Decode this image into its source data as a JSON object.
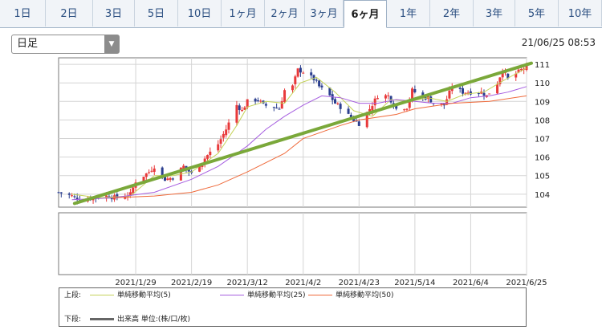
{
  "tabs": [
    {
      "label": "1日",
      "active": false
    },
    {
      "label": "2日",
      "active": false
    },
    {
      "label": "3日",
      "active": false
    },
    {
      "label": "5日",
      "active": false
    },
    {
      "label": "10日",
      "active": false
    },
    {
      "label": "1ヶ月",
      "active": false
    },
    {
      "label": "2ヶ月",
      "active": false
    },
    {
      "label": "3ヶ月",
      "active": false
    },
    {
      "label": "6ヶ月",
      "active": true
    },
    {
      "label": "1年",
      "active": false
    },
    {
      "label": "2年",
      "active": false
    },
    {
      "label": "3年",
      "active": false
    },
    {
      "label": "5年",
      "active": false
    },
    {
      "label": "10年",
      "active": false
    }
  ],
  "period_select": {
    "value": "日足"
  },
  "timestamp": "21/06/25 08:53",
  "colors": {
    "up": "#e8393a",
    "down": "#2b3f8f",
    "ma5": "#c5d35a",
    "ma25": "#a65ee0",
    "ma50": "#ef6a3b",
    "trend": "#7aa83a",
    "volume": "#666666"
  },
  "legend": {
    "upper_label": "上段:",
    "lower_label": "下段:",
    "ma5": "単純移動平均(5)",
    "ma25": "単純移動平均(25)",
    "ma50": "単純移動平均(50)",
    "volume": "出来高 単位:(株/口/枚)"
  },
  "chart_data": {
    "type": "candlestick",
    "yticks": [
      "104",
      "105",
      "106",
      "107",
      "108",
      "109",
      "110",
      "111"
    ],
    "xticks": [
      "2021/1/29",
      "2021/2/19",
      "2021/3/12",
      "2021/4/2",
      "2021/4/23",
      "2021/5/14",
      "2021/6/4",
      "2021/6/25"
    ],
    "ylim": [
      103.3,
      111.35
    ],
    "x_range": [
      "2020-12-31",
      "2021-06-25"
    ],
    "grid": true,
    "price_path": [
      [
        "2020-12-31",
        104.1
      ],
      [
        "2021-01-05",
        103.9
      ],
      [
        "2021-01-08",
        103.7
      ],
      [
        "2021-01-13",
        103.8
      ],
      [
        "2021-01-18",
        103.9
      ],
      [
        "2021-01-22",
        103.8
      ],
      [
        "2021-01-27",
        104.0
      ],
      [
        "2021-01-29",
        104.7
      ],
      [
        "2021-02-03",
        105.2
      ],
      [
        "2021-02-05",
        105.5
      ],
      [
        "2021-02-09",
        104.8
      ],
      [
        "2021-02-12",
        104.9
      ],
      [
        "2021-02-16",
        105.5
      ],
      [
        "2021-02-19",
        105.1
      ],
      [
        "2021-02-22",
        105.6
      ],
      [
        "2021-02-25",
        106.1
      ],
      [
        "2021-03-01",
        106.7
      ],
      [
        "2021-03-04",
        107.5
      ],
      [
        "2021-03-08",
        108.8
      ],
      [
        "2021-03-10",
        108.5
      ],
      [
        "2021-03-12",
        109.0
      ],
      [
        "2021-03-16",
        109.1
      ],
      [
        "2021-03-18",
        108.8
      ],
      [
        "2021-03-22",
        108.7
      ],
      [
        "2021-03-24",
        108.6
      ],
      [
        "2021-03-26",
        109.6
      ],
      [
        "2021-03-29",
        109.8
      ],
      [
        "2021-03-31",
        110.7
      ],
      [
        "2021-04-02",
        110.6
      ],
      [
        "2021-04-06",
        110.2
      ],
      [
        "2021-04-08",
        109.8
      ],
      [
        "2021-04-12",
        109.3
      ],
      [
        "2021-04-14",
        108.9
      ],
      [
        "2021-04-16",
        108.7
      ],
      [
        "2021-04-20",
        108.1
      ],
      [
        "2021-04-23",
        107.8
      ],
      [
        "2021-04-27",
        108.6
      ],
      [
        "2021-04-30",
        109.3
      ],
      [
        "2021-05-04",
        109.3
      ],
      [
        "2021-05-07",
        108.6
      ],
      [
        "2021-05-11",
        108.7
      ],
      [
        "2021-05-13",
        109.6
      ],
      [
        "2021-05-17",
        109.2
      ],
      [
        "2021-05-19",
        109.2
      ],
      [
        "2021-05-21",
        108.9
      ],
      [
        "2021-05-25",
        108.8
      ],
      [
        "2021-05-28",
        109.8
      ],
      [
        "2021-06-01",
        109.5
      ],
      [
        "2021-06-04",
        109.5
      ],
      [
        "2021-06-08",
        109.5
      ],
      [
        "2021-06-10",
        109.3
      ],
      [
        "2021-06-14",
        110.0
      ],
      [
        "2021-06-16",
        110.7
      ],
      [
        "2021-06-18",
        110.2
      ],
      [
        "2021-06-22",
        110.6
      ],
      [
        "2021-06-25",
        110.9
      ]
    ],
    "series": [
      {
        "name": "単純移動平均(5)",
        "values": [
          [
            "2021-01-05",
            104.0
          ],
          [
            "2021-01-15",
            103.8
          ],
          [
            "2021-01-27",
            103.9
          ],
          [
            "2021-02-05",
            105.0
          ],
          [
            "2021-02-12",
            105.0
          ],
          [
            "2021-02-19",
            105.2
          ],
          [
            "2021-03-01",
            106.2
          ],
          [
            "2021-03-08",
            107.7
          ],
          [
            "2021-03-12",
            108.7
          ],
          [
            "2021-03-19",
            109.0
          ],
          [
            "2021-03-26",
            108.9
          ],
          [
            "2021-04-01",
            110.0
          ],
          [
            "2021-04-07",
            110.3
          ],
          [
            "2021-04-14",
            109.5
          ],
          [
            "2021-04-21",
            108.5
          ],
          [
            "2021-04-28",
            108.2
          ],
          [
            "2021-05-05",
            109.1
          ],
          [
            "2021-05-12",
            109.0
          ],
          [
            "2021-05-19",
            109.2
          ],
          [
            "2021-05-26",
            109.0
          ],
          [
            "2021-06-02",
            109.4
          ],
          [
            "2021-06-09",
            109.5
          ],
          [
            "2021-06-16",
            110.1
          ],
          [
            "2021-06-25",
            110.8
          ]
        ]
      },
      {
        "name": "単純移動平均(25)",
        "values": [
          [
            "2021-01-05",
            103.7
          ],
          [
            "2021-01-20",
            103.8
          ],
          [
            "2021-02-05",
            104.1
          ],
          [
            "2021-02-19",
            104.8
          ],
          [
            "2021-03-01",
            105.5
          ],
          [
            "2021-03-12",
            106.6
          ],
          [
            "2021-03-19",
            107.5
          ],
          [
            "2021-03-26",
            108.2
          ],
          [
            "2021-04-02",
            108.8
          ],
          [
            "2021-04-09",
            109.3
          ],
          [
            "2021-04-16",
            109.2
          ],
          [
            "2021-04-23",
            108.9
          ],
          [
            "2021-04-30",
            108.9
          ],
          [
            "2021-05-07",
            109.1
          ],
          [
            "2021-05-14",
            109.0
          ],
          [
            "2021-05-21",
            108.9
          ],
          [
            "2021-05-28",
            108.9
          ],
          [
            "2021-06-04",
            109.2
          ],
          [
            "2021-06-11",
            109.3
          ],
          [
            "2021-06-18",
            109.5
          ],
          [
            "2021-06-25",
            109.8
          ]
        ]
      },
      {
        "name": "単純移動平均(50)",
        "values": [
          [
            "2021-01-20",
            103.8
          ],
          [
            "2021-02-05",
            103.9
          ],
          [
            "2021-02-19",
            104.1
          ],
          [
            "2021-03-01",
            104.5
          ],
          [
            "2021-03-12",
            105.2
          ],
          [
            "2021-03-26",
            106.2
          ],
          [
            "2021-04-02",
            107.0
          ],
          [
            "2021-04-16",
            107.7
          ],
          [
            "2021-04-23",
            108.0
          ],
          [
            "2021-05-07",
            108.3
          ],
          [
            "2021-05-14",
            108.6
          ],
          [
            "2021-05-28",
            108.9
          ],
          [
            "2021-06-11",
            109.0
          ],
          [
            "2021-06-25",
            109.3
          ]
        ]
      }
    ],
    "trendline": [
      [
        "2021-01-06",
        103.5
      ],
      [
        "2021-06-25",
        110.98
      ]
    ]
  }
}
